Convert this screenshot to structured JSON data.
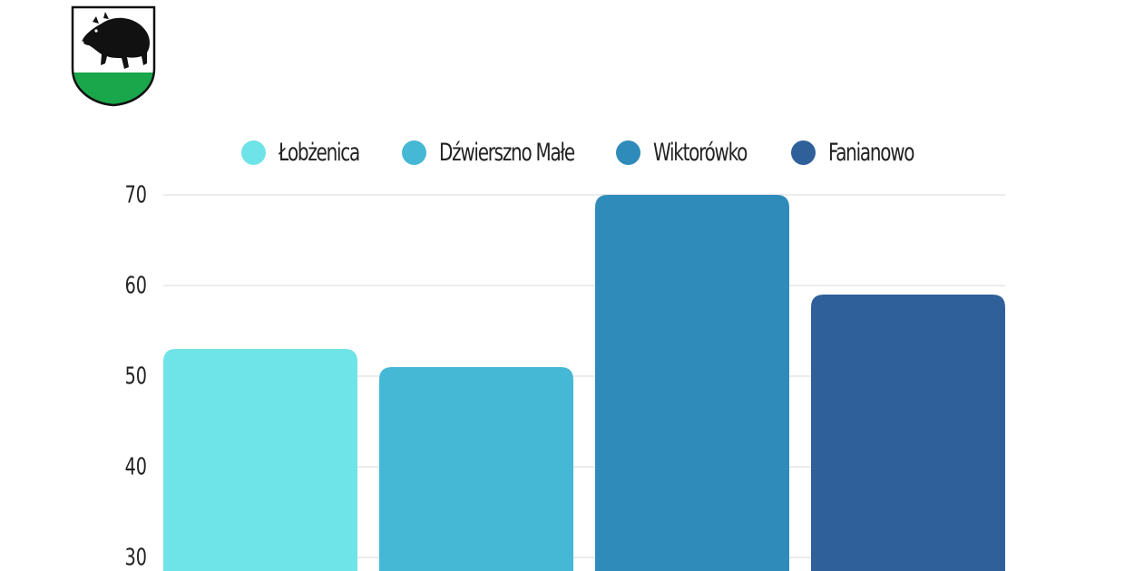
{
  "chart_data": {
    "type": "bar",
    "categories": [
      "Łobżenica",
      "Dźwierszno Małe",
      "Wiktorówko",
      "Fanianowo"
    ],
    "values": [
      53,
      51,
      70,
      59
    ],
    "colors": [
      "#6ee3e8",
      "#45b8d5",
      "#2e8bba",
      "#30609a"
    ],
    "y_ticks": [
      "30",
      "40",
      "50",
      "60",
      "70"
    ],
    "ylim": [
      25.5,
      70
    ],
    "grid": true,
    "legend_position": "top-center"
  },
  "crest": {
    "icon": "boar-coat-of-arms",
    "colors": {
      "field": "#ffffff",
      "base": "#1aa64b",
      "outline": "#111111"
    }
  }
}
